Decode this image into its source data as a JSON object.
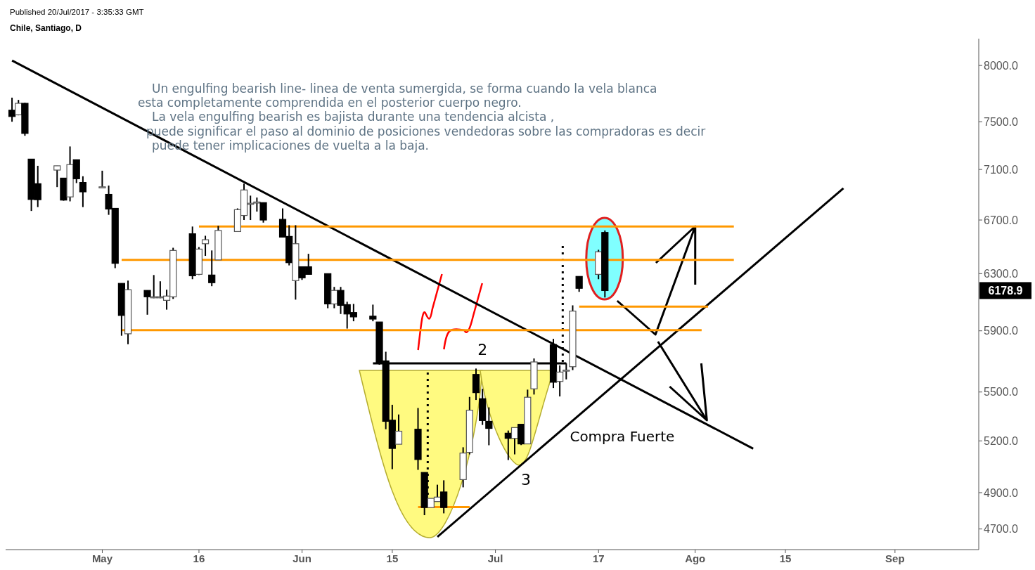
{
  "chart_data": {
    "type": "candlestick",
    "title": "Chile, Santiago, D",
    "annotations": [
      "Published 20/Jul/2017 - 3:35:33 GMT",
      "Un engulfing bearish line- linea de venta sumergida, se forma cuando la vela blanca",
      "esta completamente comprendida en el posterior cuerpo negro.",
      "La vela engulfing bearish es bajista durante una tendencia alcista ,",
      "puede significar el paso al dominio de posiciones vendedoras sobre las compradoras es decir",
      "puede tener implicaciones de vuelta a la baja.",
      "2",
      "3",
      "Compra Fuerte",
      "6178.9"
    ],
    "x": [
      "2017-04-17",
      "2017-04-18",
      "2017-04-19",
      "2017-04-20",
      "2017-04-21",
      "2017-04-24",
      "2017-04-25",
      "2017-04-26",
      "2017-04-27",
      "2017-04-28",
      "2017-05-01",
      "2017-05-02",
      "2017-05-03",
      "2017-05-04",
      "2017-05-05",
      "2017-05-08",
      "2017-05-09",
      "2017-05-10",
      "2017-05-11",
      "2017-05-12",
      "2017-05-15",
      "2017-05-16",
      "2017-05-17",
      "2017-05-18",
      "2017-05-19",
      "2017-05-22",
      "2017-05-23",
      "2017-05-24",
      "2017-05-25",
      "2017-05-26",
      "2017-05-29",
      "2017-05-30",
      "2017-05-31",
      "2017-06-01",
      "2017-06-02",
      "2017-06-05",
      "2017-06-06",
      "2017-06-07",
      "2017-06-08",
      "2017-06-09",
      "2017-06-12",
      "2017-06-13",
      "2017-06-14",
      "2017-06-15",
      "2017-06-16",
      "2017-06-19",
      "2017-06-20",
      "2017-06-21",
      "2017-06-22",
      "2017-06-23",
      "2017-06-26",
      "2017-06-27",
      "2017-06-28",
      "2017-06-29",
      "2017-06-30",
      "2017-07-03",
      "2017-07-04",
      "2017-07-05",
      "2017-07-06",
      "2017-07-07",
      "2017-07-10",
      "2017-07-11",
      "2017-07-12",
      "2017-07-13",
      "2017-07-14",
      "2017-07-17",
      "2017-07-18"
    ],
    "ohlc": [
      [
        7600,
        7710,
        7500,
        7545
      ],
      [
        7560,
        7690,
        7555,
        7660
      ],
      [
        7660,
        7665,
        7380,
        7400
      ],
      [
        7185,
        7185,
        6770,
        6860
      ],
      [
        6985,
        7130,
        6800,
        6858
      ],
      [
        7095,
        7130,
        6958,
        7130
      ],
      [
        7030,
        7030,
        6850,
        6855
      ],
      [
        6880,
        7290,
        6845,
        7140
      ],
      [
        7180,
        7180,
        6990,
        7025
      ],
      [
        6995,
        7045,
        6800,
        6920
      ],
      [
        6960,
        7090,
        6955,
        6960
      ],
      [
        6900,
        6970,
        6740,
        6785
      ],
      [
        6790,
        6790,
        6340,
        6375
      ],
      [
        6230,
        6230,
        5867,
        6005
      ],
      [
        5880,
        6250,
        5810,
        6185
      ],
      [
        6180,
        6180,
        6010,
        6135
      ],
      [
        6130,
        6290,
        6125,
        6135
      ],
      [
        6130,
        6245,
        6125,
        6135
      ],
      [
        6110,
        6185,
        6045,
        6140
      ],
      [
        6135,
        6490,
        6120,
        6470
      ],
      [
        6595,
        6650,
        6260,
        6285
      ],
      [
        6295,
        6495,
        6290,
        6480
      ],
      [
        6520,
        6580,
        6430,
        6550
      ],
      [
        6290,
        6470,
        6210,
        6235
      ],
      [
        6400,
        6655,
        6400,
        6620
      ],
      [
        6612,
        6790,
        6612,
        6780
      ],
      [
        6735,
        6985,
        6700,
        6935
      ],
      [
        6830,
        6890,
        6700,
        6830
      ],
      [
        6840,
        6875,
        6765,
        6840
      ],
      [
        6835,
        6835,
        6680,
        6700
      ],
      [
        6705,
        6790,
        6570,
        6570
      ],
      [
        6575,
        6660,
        6360,
        6380
      ],
      [
        6250,
        6660,
        6115,
        6520
      ],
      [
        6350,
        6350,
        6255,
        6270
      ],
      [
        6350,
        6445,
        6295,
        6295
      ],
      [
        6300,
        6300,
        6055,
        6085
      ],
      [
        6085,
        6205,
        6055,
        6180
      ],
      [
        6180,
        6205,
        6015,
        6075
      ],
      [
        6080,
        6100,
        5915,
        6015
      ],
      [
        6025,
        6085,
        5965,
        5995
      ],
      [
        6000,
        6080,
        5965,
        5980
      ],
      [
        5960,
        5960,
        5675,
        5684
      ],
      [
        5700,
        5760,
        5270,
        5318
      ],
      [
        5325,
        5420,
        5034,
        5155
      ],
      [
        5180,
        5360,
        5180,
        5258
      ],
      [
        5270,
        5400,
        5030,
        5090
      ],
      [
        5015,
        5015,
        4775,
        4817
      ],
      [
        4817,
        4868,
        4817,
        4868
      ],
      [
        4850,
        4945,
        4850,
        4875
      ],
      [
        4904,
        4970,
        4785,
        4817
      ],
      [
        4974,
        5162,
        4930,
        5128
      ],
      [
        5132,
        5469,
        5120,
        5386
      ],
      [
        5612,
        5650,
        5450,
        5496
      ],
      [
        5458,
        5520,
        5296,
        5323
      ],
      [
        5318,
        5404,
        5174,
        5275
      ],
      [
        5246,
        5262,
        5087,
        5215
      ],
      [
        5215,
        5280,
        5120,
        5280
      ],
      [
        5300,
        5300,
        5175,
        5182
      ],
      [
        5182,
        5515,
        5182,
        5467
      ],
      [
        5520,
        5716,
        5484,
        5693
      ],
      [
        5808,
        5846,
        5525,
        5562
      ],
      [
        5567,
        5671,
        5472,
        5627
      ],
      [
        5640,
        5684,
        5580,
        5640
      ],
      [
        5662,
        6075,
        5640,
        6035
      ],
      [
        6280,
        6280,
        6170,
        6195
      ],
      [
        6295,
        6475,
        6260,
        6460
      ],
      [
        6605,
        6620,
        6130,
        6178.9
      ]
    ],
    "series": [
      {
        "type": "line",
        "color": "#000000",
        "x": [
          "2017-04-17",
          "2017-08-10"
        ],
        "values": [
          8045,
          5154
        ]
      },
      {
        "type": "line",
        "color": "#000000",
        "x": [
          "2017-06-22",
          "2017-08-24"
        ],
        "values": [
          4658,
          6949
        ]
      },
      {
        "type": "line",
        "color": "#000000",
        "x": [
          "2017-06-12",
          "2017-07-12"
        ],
        "values": [
          5684,
          5684
        ]
      },
      {
        "type": "line",
        "color": "#ff9800",
        "x": [
          "2017-05-16",
          "2017-08-07"
        ],
        "values": [
          6650,
          6650
        ]
      },
      {
        "type": "line",
        "color": "#ff9800",
        "x": [
          "2017-05-04",
          "2017-08-07"
        ],
        "values": [
          6400,
          6400
        ]
      },
      {
        "type": "line",
        "color": "#ff9800",
        "x": [
          "2017-05-04",
          "2017-08-02"
        ],
        "values": [
          5905,
          5905
        ]
      },
      {
        "type": "line",
        "color": "#ff9800",
        "x": [
          "2017-07-14",
          "2017-08-03"
        ],
        "values": [
          6066,
          6066
        ]
      },
      {
        "type": "line",
        "color": "#ff9800",
        "x": [
          "2017-06-19",
          "2017-06-27"
        ],
        "values": [
          4820,
          4820
        ]
      }
    ],
    "xlim": [
      "2017-04-16",
      "2017-09-14"
    ],
    "xticks": [
      {
        "value": "2017-05-01",
        "label": "May"
      },
      {
        "value": "2017-05-16",
        "label": "16"
      },
      {
        "value": "2017-06-01",
        "label": "Jun"
      },
      {
        "value": "2017-06-15",
        "label": "15"
      },
      {
        "value": "2017-07-01",
        "label": "Jul"
      },
      {
        "value": "2017-07-17",
        "label": "17"
      },
      {
        "value": "2017-08-01",
        "label": "Ago"
      },
      {
        "value": "2017-08-15",
        "label": "15"
      },
      {
        "value": "2017-09-01",
        "label": "Sep"
      }
    ],
    "ylim": [
      4590,
      8250
    ],
    "yticks": [
      {
        "value": 4700,
        "label": "4700.0"
      },
      {
        "value": 4900,
        "label": "4900.0"
      },
      {
        "value": 5200,
        "label": "5200.0"
      },
      {
        "value": 5500,
        "label": "5500.0"
      },
      {
        "value": 5900,
        "label": "5900.0"
      },
      {
        "value": 6300,
        "label": "6300.0"
      },
      {
        "value": 6700,
        "label": "6700.0"
      },
      {
        "value": 7100,
        "label": "7100.0"
      },
      {
        "value": 7500,
        "label": "7500.0"
      },
      {
        "value": 8000,
        "label": "8000.0"
      }
    ],
    "log": true,
    "grid": false,
    "legend": false
  }
}
